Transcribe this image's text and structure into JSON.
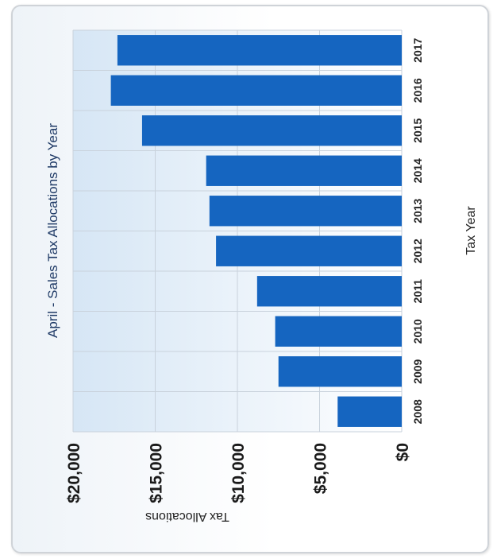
{
  "chart_data": {
    "type": "bar",
    "orientation": "rotated-90-ccw",
    "title": "April - Sales Tax Allocations by Year",
    "xlabel": "Tax Year",
    "ylabel": "Tax Allocations",
    "categories": [
      "2008",
      "2009",
      "2010",
      "2011",
      "2012",
      "2013",
      "2014",
      "2015",
      "2016",
      "2017"
    ],
    "values": [
      3900,
      7500,
      7700,
      8800,
      11300,
      11700,
      11900,
      15800,
      17700,
      17300
    ],
    "ylim": [
      0,
      20000
    ],
    "y_ticks": [
      0,
      5000,
      10000,
      15000,
      20000
    ],
    "y_tick_labels": [
      "$0",
      "$5,000",
      "$10,000",
      "$15,000",
      "$20,000"
    ],
    "grid": true,
    "bar_color": "#1565c0"
  }
}
